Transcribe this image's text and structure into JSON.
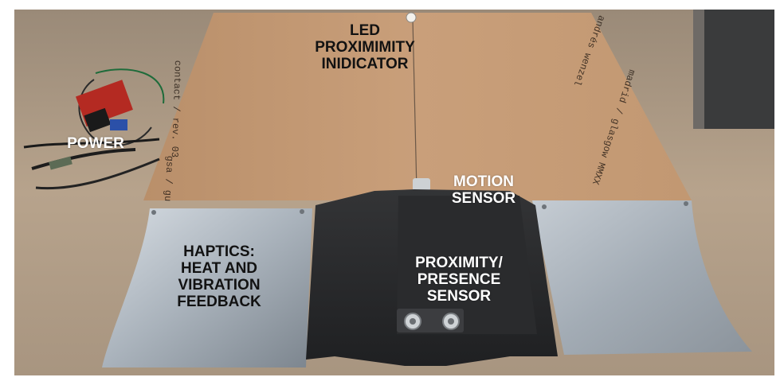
{
  "labels": {
    "led": [
      "LED",
      "PROXIMIMITY",
      "INIDICATOR"
    ],
    "power": [
      "POWER"
    ],
    "motion": [
      "MOTION",
      "SENSOR"
    ],
    "haptics": [
      "HAPTICS:",
      "HEAT AND",
      "VIBRATION",
      "FEEDBACK"
    ],
    "proximity": [
      "PROXIMITY/",
      "PRESENCE",
      "SENSOR"
    ]
  },
  "board_text": {
    "contact": "contact / rev. 03",
    "author": "andrés wenzel",
    "place": "madrid / glasgow MMXX",
    "school": "gsa / gu"
  }
}
